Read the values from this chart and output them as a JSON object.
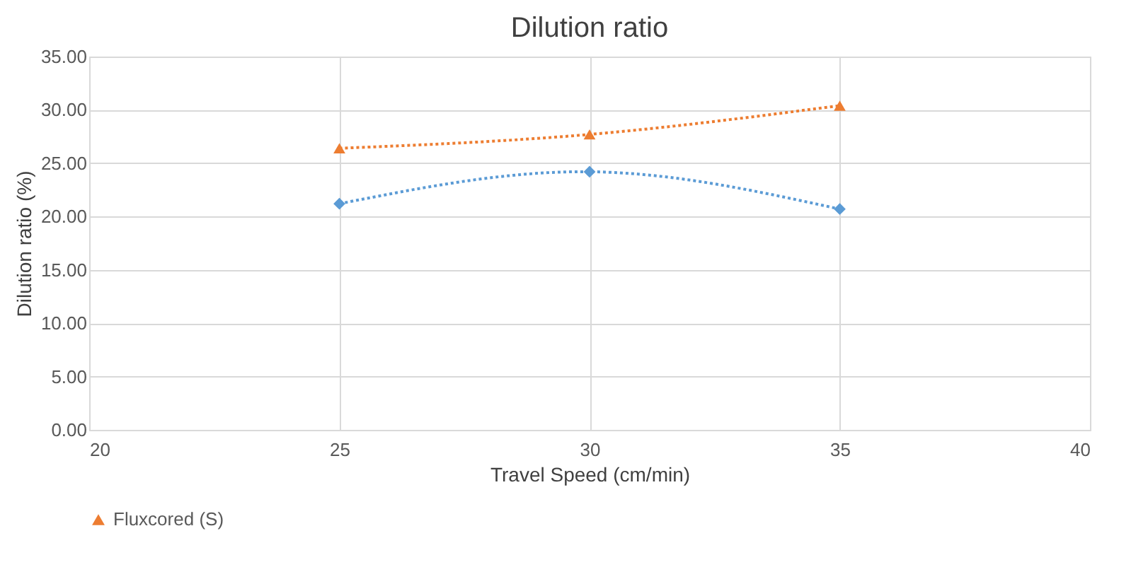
{
  "chart_data": {
    "type": "line",
    "title": "Dilution ratio",
    "xlabel": "Travel Speed (cm/min)",
    "ylabel": "Dilution ratio (%)",
    "x": [
      25,
      30,
      35
    ],
    "series": [
      {
        "color": "#5b9bd5",
        "marker": "diamond",
        "values": [
          21.2,
          24.2,
          20.7
        ]
      },
      {
        "name": "Fluxcored (S)",
        "color": "#ed7d31",
        "marker": "triangle",
        "values": [
          26.4,
          27.7,
          30.4
        ]
      }
    ],
    "line_style": "dotted",
    "xlim": [
      20,
      40
    ],
    "xticks": [
      20,
      25,
      30,
      35,
      40
    ],
    "ylim": [
      0,
      35
    ],
    "yticks": [
      {
        "value": 0,
        "label": "0.00"
      },
      {
        "value": 5,
        "label": "5.00"
      },
      {
        "value": 10,
        "label": "10.00"
      },
      {
        "value": 15,
        "label": "15.00"
      },
      {
        "value": 20,
        "label": "20.00"
      },
      {
        "value": 25,
        "label": "25.00"
      },
      {
        "value": 30,
        "label": "30.00"
      },
      {
        "value": 35,
        "label": "35.00"
      }
    ],
    "grid": true,
    "legend": "bottom"
  }
}
